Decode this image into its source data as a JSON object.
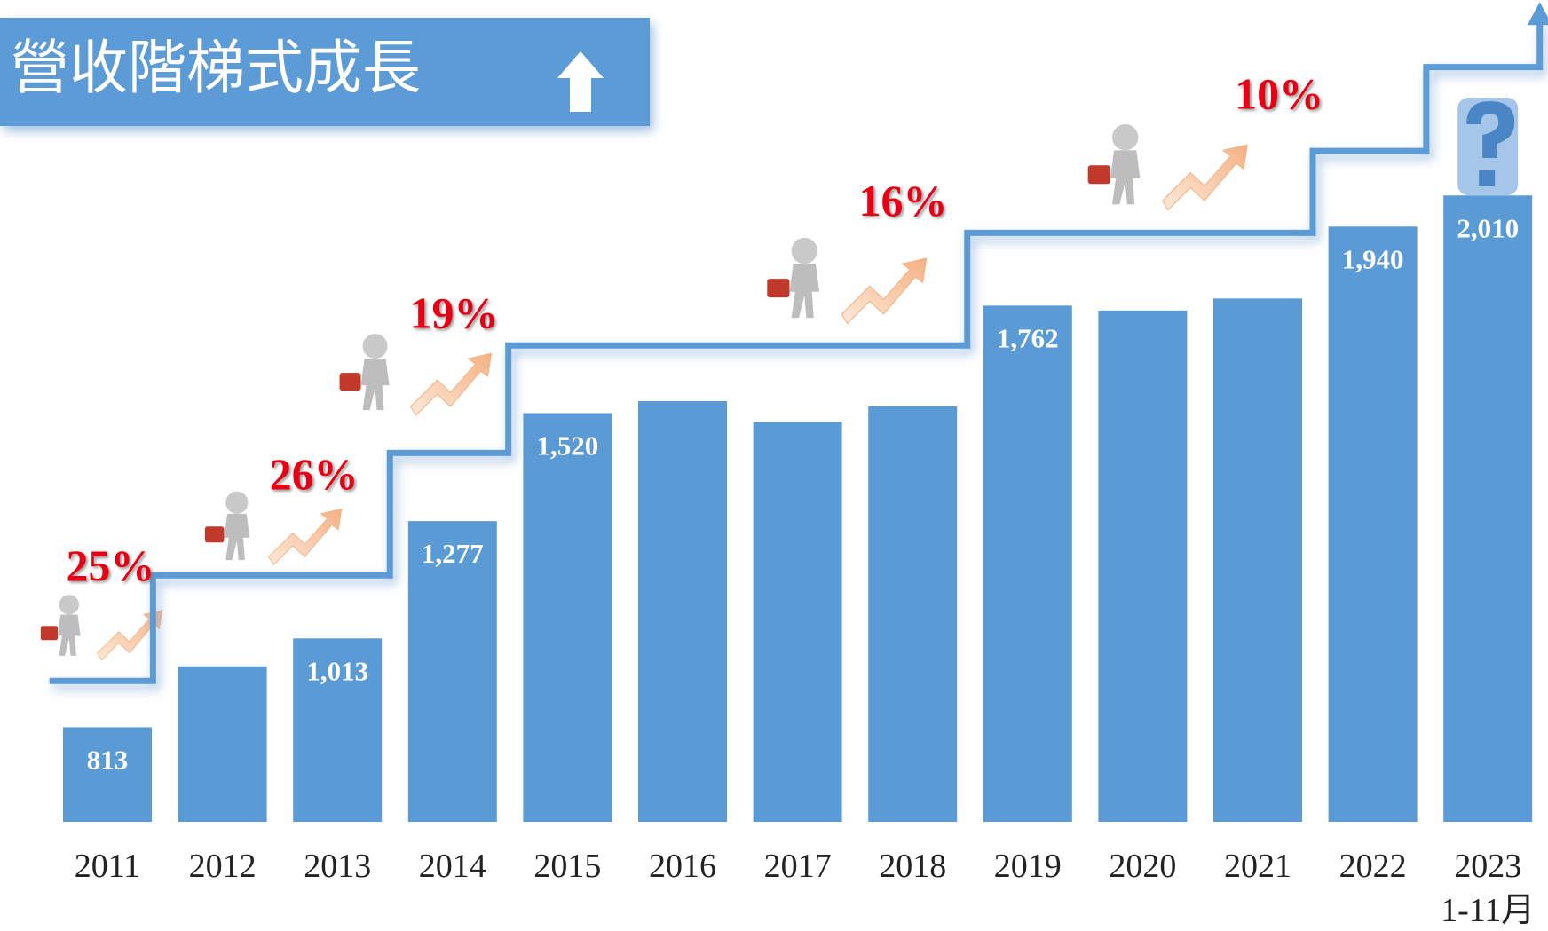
{
  "chart_data": {
    "type": "bar",
    "title": "營收階梯式成長",
    "categories": [
      "2011",
      "2012",
      "2013",
      "2014",
      "2015",
      "2016",
      "2017",
      "2018",
      "2019",
      "2020",
      "2021",
      "2022",
      "2023\n1-11月"
    ],
    "values": [
      813,
      950,
      1013,
      1277,
      1520,
      1547,
      1500,
      1535,
      1762,
      1751,
      1778,
      1940,
      2010
    ],
    "value_labels": [
      "813",
      null,
      "1,013",
      "1,277",
      "1,520",
      null,
      null,
      null,
      "1,762",
      null,
      null,
      "1,940",
      "2,010"
    ],
    "color": "#5b9bd5",
    "ylim": [
      600,
      2450
    ],
    "annotations": [
      "25%",
      "26%",
      "19%",
      "16%",
      "10%"
    ]
  }
}
